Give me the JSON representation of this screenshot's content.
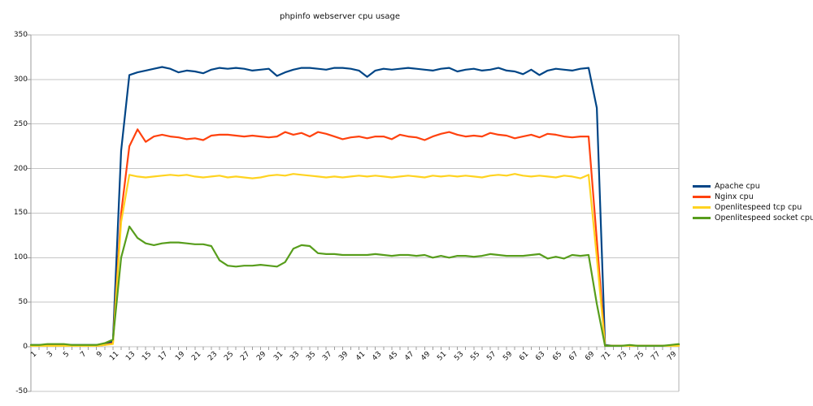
{
  "title": "phpinfo webserver cpu usage",
  "chart_data": {
    "type": "line",
    "title": "phpinfo webserver cpu usage",
    "xlabel": "",
    "ylabel": "",
    "ylim": [
      -50,
      350
    ],
    "grid": "horizontal",
    "legend_position": "right",
    "x_count": 80,
    "x_tick_labels": [
      "1",
      "3",
      "5",
      "7",
      "9",
      "11",
      "13",
      "15",
      "17",
      "19",
      "21",
      "23",
      "25",
      "27",
      "29",
      "31",
      "33",
      "35",
      "37",
      "39",
      "41",
      "43",
      "45",
      "47",
      "49",
      "51",
      "53",
      "55",
      "57",
      "59",
      "61",
      "63",
      "65",
      "67",
      "69",
      "71",
      "73",
      "75",
      "77",
      "79"
    ],
    "y_tick_labels": [
      350,
      300,
      250,
      200,
      150,
      100,
      50,
      0,
      -50
    ],
    "series": [
      {
        "name": "Apache cpu",
        "color": "#004586",
        "values": [
          2,
          2,
          2,
          2,
          2,
          2,
          2,
          2,
          2,
          3,
          6,
          220,
          305,
          308,
          310,
          312,
          314,
          312,
          308,
          310,
          309,
          307,
          311,
          313,
          312,
          313,
          312,
          310,
          311,
          312,
          304,
          308,
          311,
          313,
          313,
          312,
          311,
          313,
          313,
          312,
          310,
          303,
          310,
          312,
          311,
          312,
          313,
          312,
          311,
          310,
          312,
          313,
          309,
          311,
          312,
          310,
          311,
          313,
          310,
          309,
          306,
          311,
          305,
          310,
          312,
          311,
          310,
          312,
          313,
          268,
          2,
          1,
          1,
          1,
          1,
          1,
          1,
          1,
          1,
          2
        ]
      },
      {
        "name": "Nginx cpu",
        "color": "#FF420E",
        "values": [
          1,
          1,
          1,
          1,
          1,
          1,
          1,
          1,
          1,
          2,
          4,
          150,
          225,
          244,
          230,
          236,
          238,
          236,
          235,
          233,
          234,
          232,
          237,
          238,
          238,
          237,
          236,
          237,
          236,
          235,
          236,
          241,
          238,
          240,
          236,
          241,
          239,
          236,
          233,
          235,
          236,
          234,
          236,
          236,
          233,
          238,
          236,
          235,
          232,
          236,
          239,
          241,
          238,
          236,
          237,
          236,
          240,
          238,
          237,
          234,
          236,
          238,
          235,
          239,
          238,
          236,
          235,
          236,
          236,
          120,
          1,
          1,
          1,
          1,
          1,
          1,
          1,
          1,
          1,
          1
        ]
      },
      {
        "name": "Openlitespeed tcp cpu",
        "color": "#FFD320",
        "values": [
          1,
          1,
          1,
          1,
          1,
          1,
          1,
          1,
          1,
          2,
          3,
          140,
          193,
          191,
          190,
          191,
          192,
          193,
          192,
          193,
          191,
          190,
          191,
          192,
          190,
          191,
          190,
          189,
          190,
          192,
          193,
          192,
          194,
          193,
          192,
          191,
          190,
          191,
          190,
          191,
          192,
          191,
          192,
          191,
          190,
          191,
          192,
          191,
          190,
          192,
          191,
          192,
          191,
          192,
          191,
          190,
          192,
          193,
          192,
          194,
          192,
          191,
          192,
          191,
          190,
          192,
          191,
          189,
          193,
          100,
          1,
          1,
          1,
          1,
          1,
          1,
          1,
          1,
          1,
          1
        ]
      },
      {
        "name": "Openlitespeed socket cpu",
        "color": "#579D1C",
        "values": [
          2,
          2,
          3,
          3,
          3,
          2,
          2,
          2,
          2,
          4,
          8,
          100,
          135,
          122,
          116,
          114,
          116,
          117,
          117,
          116,
          115,
          115,
          113,
          97,
          91,
          90,
          91,
          91,
          92,
          91,
          90,
          95,
          110,
          114,
          113,
          105,
          104,
          104,
          103,
          103,
          103,
          103,
          104,
          103,
          102,
          103,
          103,
          102,
          103,
          100,
          102,
          100,
          102,
          102,
          101,
          102,
          104,
          103,
          102,
          102,
          102,
          103,
          104,
          99,
          101,
          99,
          103,
          102,
          103,
          48,
          1,
          1,
          1,
          2,
          1,
          1,
          1,
          1,
          2,
          3
        ]
      }
    ]
  },
  "layout_colors": {
    "background": "#ffffff",
    "gridline": "#c6c6c6",
    "axis": "#9b9b9b",
    "text": "#111111"
  }
}
